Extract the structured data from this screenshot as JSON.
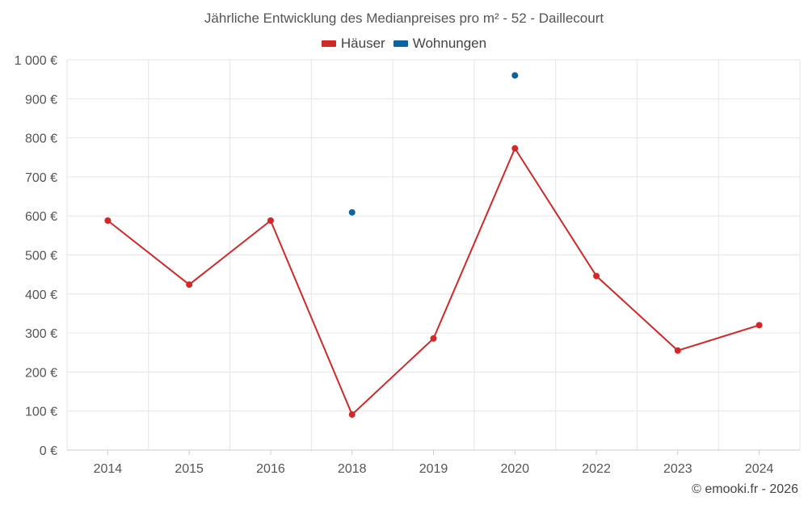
{
  "chart_data": {
    "type": "line",
    "title": "Jährliche Entwicklung des Medianpreises pro m² - 52 - Daillecourt",
    "categories": [
      "2014",
      "2015",
      "2016",
      "2018",
      "2019",
      "2020",
      "2022",
      "2023",
      "2024"
    ],
    "series": [
      {
        "name": "Häuser",
        "color": "#d62728",
        "values": [
          588,
          424,
          588,
          91,
          286,
          773,
          446,
          255,
          320
        ]
      },
      {
        "name": "Wohnungen",
        "color": "#0b64a0",
        "values": [
          null,
          null,
          null,
          609,
          null,
          960,
          null,
          null,
          null
        ]
      }
    ],
    "ylim": [
      0,
      1000
    ],
    "yticks": [
      0,
      100,
      200,
      300,
      400,
      500,
      600,
      700,
      800,
      900,
      1000
    ],
    "ytick_labels": [
      "0 €",
      "100 €",
      "200 €",
      "300 €",
      "400 €",
      "500 €",
      "600 €",
      "700 €",
      "800 €",
      "900 €",
      "1 000 €"
    ],
    "xlabel": "",
    "ylabel": "",
    "grid": true,
    "legend_position": "top-center"
  },
  "credit": "© emooki.fr - 2026"
}
